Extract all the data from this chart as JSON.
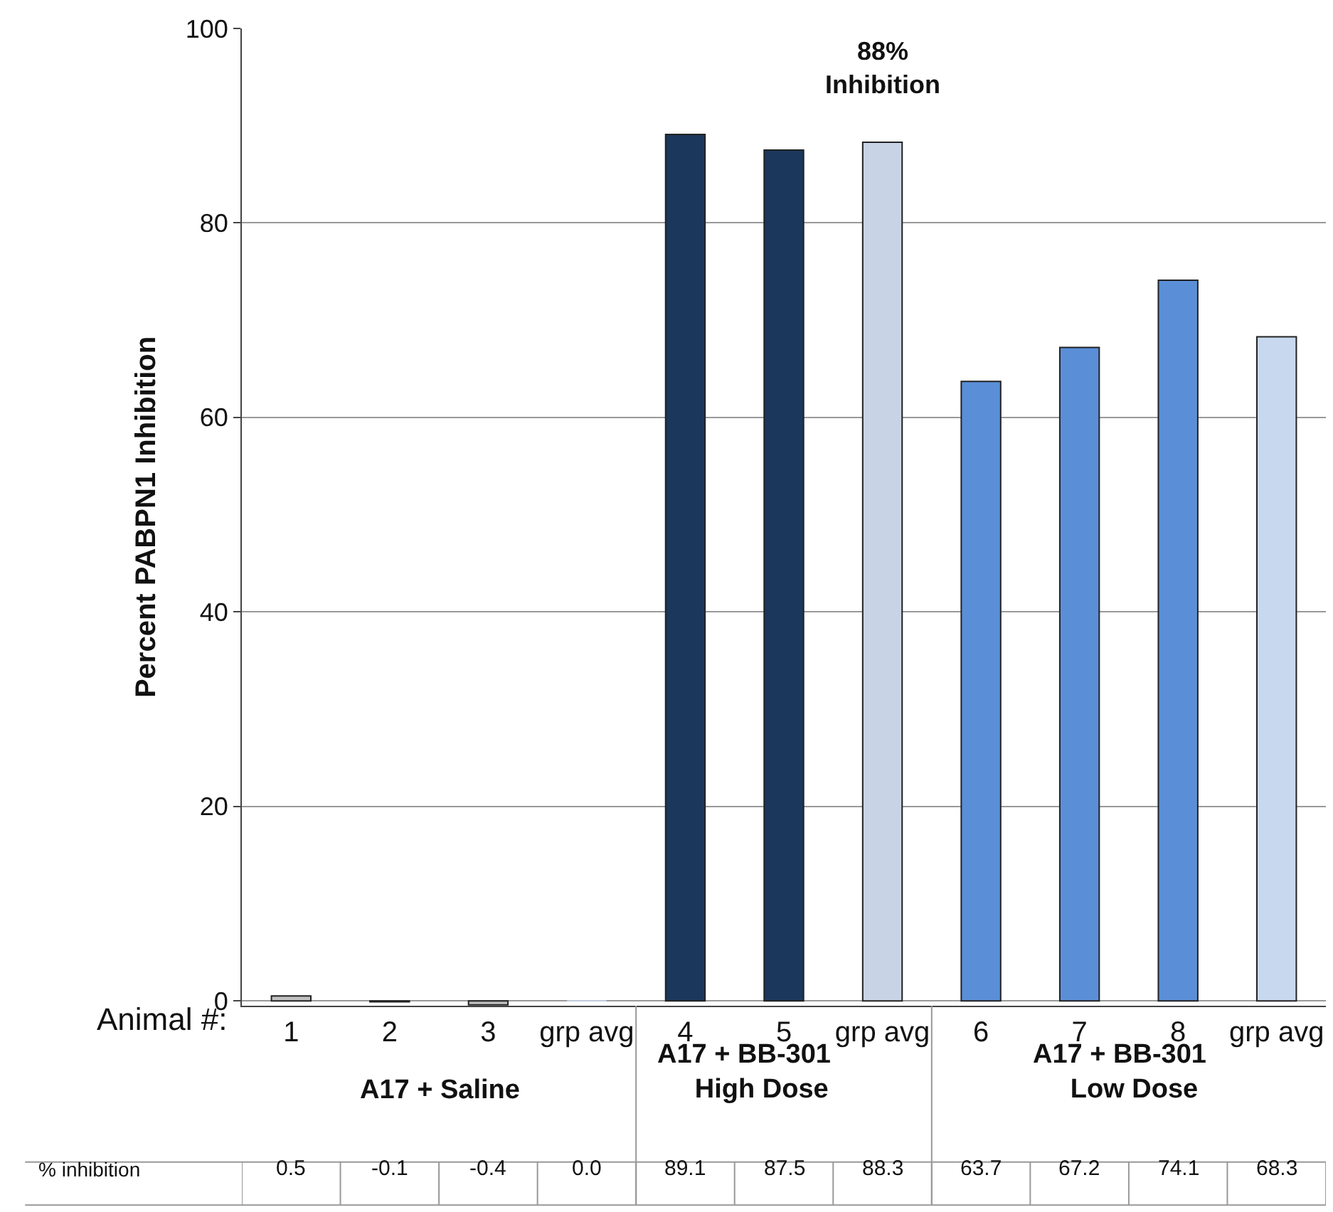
{
  "chart_data": {
    "type": "bar",
    "categories": [
      "1",
      "2",
      "3",
      "grp avg",
      "4",
      "5",
      "grp avg",
      "6",
      "7",
      "8",
      "grp avg"
    ],
    "series": [
      {
        "name": "% inhibition",
        "colors": [
          "#c0c0c0",
          "#c0c0c0",
          "#c0c0c0",
          "#c8d4e6",
          "#1b375b",
          "#1b375b",
          "#c8d4e6",
          "#5a8fd8",
          "#5a8fd8",
          "#5a8fd8",
          "#c8d8ee"
        ],
        "values": [
          0.5,
          -0.1,
          -0.4,
          0.0,
          89.1,
          87.5,
          88.3,
          63.7,
          67.2,
          74.1,
          68.3
        ],
        "value_labels": [
          "0.5",
          "-0.1",
          "-0.4",
          "0.0",
          "89.1",
          "87.5",
          "88.3",
          "63.7",
          "67.2",
          "74.1",
          "68.3"
        ]
      }
    ],
    "xlabel": "Animal #:",
    "ylabel": "Percent PABPN1 Inhibition",
    "ylim": [
      -0.5,
      100
    ],
    "yticks": [
      0,
      20,
      40,
      60,
      80,
      100
    ],
    "grid": "y",
    "annotations": [
      "88%\nInhibition",
      "A17 + Saline",
      "A17 + BB-301\n     High Dose",
      "A17 + BB-301\n     Low Dose"
    ]
  }
}
